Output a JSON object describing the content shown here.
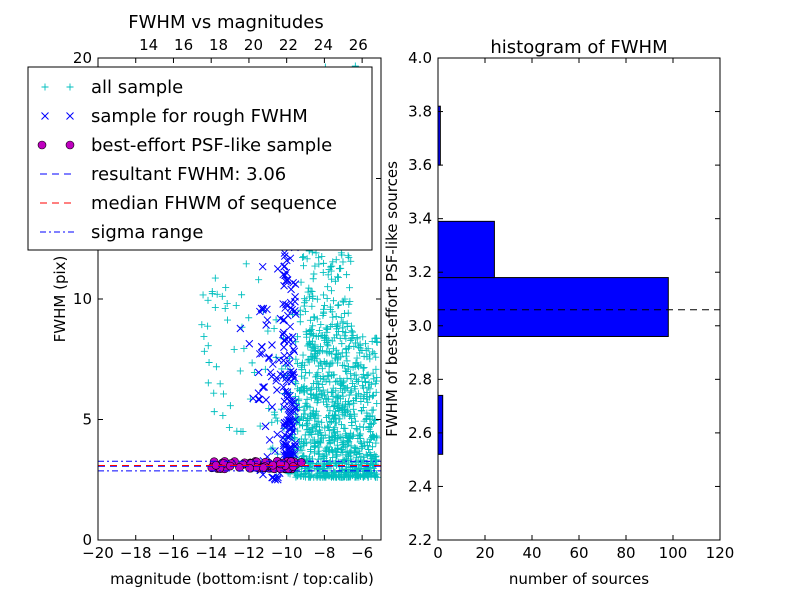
{
  "chart_data": [
    {
      "type": "scatter",
      "title": "FWHM vs magnitudes",
      "xlabel": "magnitude (bottom:isnt / top:calib)",
      "ylabel": "FWHM (pix)",
      "xlim": [
        -20,
        -5
      ],
      "ylim": [
        0,
        20
      ],
      "top_xlim": [
        11.1,
        27.3
      ],
      "x_ticks": [
        -20,
        -18,
        -16,
        -14,
        -12,
        -10,
        -8,
        -6
      ],
      "y_ticks": [
        0,
        5,
        10,
        15,
        20
      ],
      "top_ticks": [
        14,
        16,
        18,
        20,
        22,
        24,
        26
      ],
      "legend_position": "upper-left",
      "series": [
        {
          "name": "all sample",
          "marker": "plus",
          "color": "#00bfbf",
          "clusters": [
            {
              "x_range": [
                -9.6,
                -5.2
              ],
              "y_range": [
                2.6,
                8.5
              ],
              "count": 900
            },
            {
              "x_range": [
                -9.3,
                -6.5
              ],
              "y_range": [
                8.5,
                15.5
              ],
              "count": 180
            },
            {
              "x_range": [
                -8.3,
                -5.8
              ],
              "y_range": [
                14.5,
                19.8
              ],
              "count": 45
            },
            {
              "x_range": [
                -14.5,
                -11.0
              ],
              "y_range": [
                4.5,
                11.5
              ],
              "count": 45
            },
            {
              "x_range": [
                -11.0,
                -9.6
              ],
              "y_range": [
                2.6,
                9.5
              ],
              "count": 40
            }
          ]
        },
        {
          "name": "sample for rough FWHM",
          "marker": "x",
          "color": "#0000ff",
          "clusters": [
            {
              "x_range": [
                -10.2,
                -9.5
              ],
              "y_range": [
                3.5,
                15.5
              ],
              "count": 160
            },
            {
              "x_range": [
                -11.5,
                -10.3
              ],
              "y_range": [
                2.5,
                11.5
              ],
              "count": 45
            },
            {
              "x_range": [
                -12.6,
                -11.0
              ],
              "y_range": [
                5.8,
                11.0
              ],
              "count": 10
            }
          ]
        },
        {
          "name": "best-effort PSF-like sample",
          "marker": "circle",
          "color": "#bf00bf",
          "clusters": [
            {
              "x_range": [
                -14.0,
                -9.2
              ],
              "y_range": [
                2.95,
                3.3
              ],
              "count": 65
            }
          ]
        },
        {
          "name": "resultant FWHM: 3.06",
          "style": "dashed",
          "color": "#0000ff",
          "y": 3.06
        },
        {
          "name": "median FHWM of sequence",
          "style": "dashed",
          "color": "#ff0000",
          "y": 3.09
        },
        {
          "name": "sigma range",
          "style": "dashdot",
          "color": "#0000ff",
          "y_values": [
            2.87,
            3.27
          ]
        }
      ]
    },
    {
      "type": "bar",
      "orientation": "horizontal",
      "title": "histogram of FWHM",
      "xlabel": "number of sources",
      "ylabel": "FWHM of best-effort PSF-like sources",
      "xlim": [
        0,
        120
      ],
      "ylim": [
        2.2,
        4.0
      ],
      "x_ticks": [
        0,
        20,
        40,
        60,
        80,
        100,
        120
      ],
      "y_ticks": [
        2.2,
        2.4,
        2.6,
        2.8,
        3.0,
        3.2,
        3.4,
        3.6,
        3.8,
        4.0
      ],
      "bars": [
        {
          "y0": 2.52,
          "y1": 2.74,
          "count": 2
        },
        {
          "y0": 2.96,
          "y1": 3.18,
          "count": 98
        },
        {
          "y0": 3.18,
          "y1": 3.39,
          "count": 24
        },
        {
          "y0": 3.6,
          "y1": 3.82,
          "count": 1
        }
      ],
      "bar_color": "#0000ff",
      "reference_line": {
        "y": 3.06,
        "style": "dashed",
        "color": "#000000"
      }
    }
  ]
}
